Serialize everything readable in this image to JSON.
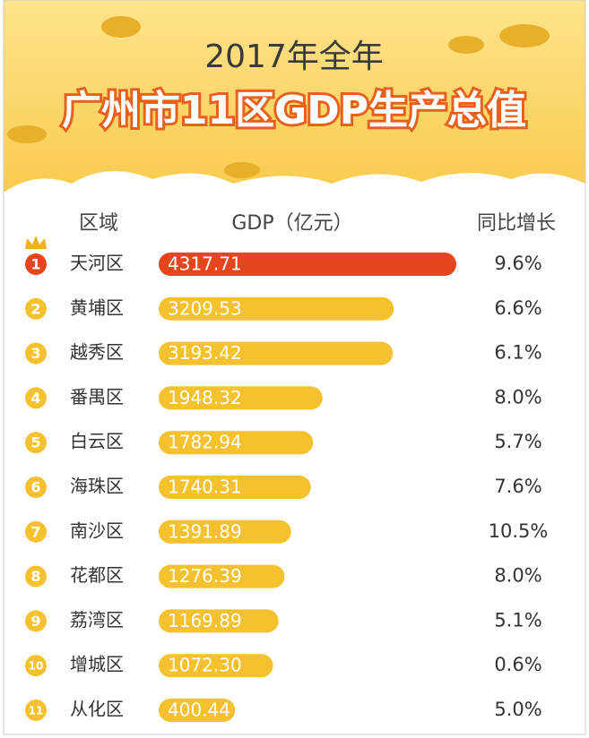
{
  "chart_data": {
    "type": "bar",
    "title": "2017年全年",
    "subtitle": "广州市11区GDP生产总值",
    "headers": [
      "区域",
      "GDP（亿元）",
      "同比增长"
    ],
    "ranks": [
      1,
      2,
      3,
      4,
      5,
      6,
      7,
      8,
      9,
      10,
      11
    ],
    "categories": [
      "天河区",
      "黄埔区",
      "越秀区",
      "番禺区",
      "白云区",
      "海珠区",
      "南沙区",
      "花都区",
      "荔湾区",
      "增城区",
      "从化区"
    ],
    "values": [
      4317.71,
      3209.53,
      3193.42,
      1948.32,
      1782.94,
      1740.31,
      1391.89,
      1276.39,
      1169.89,
      1072.3,
      400.44
    ],
    "value_labels": [
      "4317.71",
      "3209.53",
      "3193.42",
      "1948.32",
      "1782.94",
      "1740.31",
      "1391.89",
      "1276.39",
      "1169.89",
      "1072.30",
      "400.44"
    ],
    "growth": [
      9.6,
      6.6,
      6.1,
      8.0,
      5.7,
      7.6,
      10.5,
      8.0,
      5.1,
      0.6,
      5.0
    ],
    "growth_labels": [
      "9.6%",
      "6.6%",
      "6.1%",
      "8.0%",
      "5.7%",
      "7.6%",
      "10.5%",
      "8.0%",
      "5.1%",
      "0.6%",
      "5.0%"
    ],
    "colors": [
      "#e5461b",
      "#f6c12f",
      "#f6c12f",
      "#f6c12f",
      "#f6c12f",
      "#f6c12f",
      "#f6c12f",
      "#f6c12f",
      "#f6c12f",
      "#f6c12f",
      "#f6c12f"
    ]
  }
}
